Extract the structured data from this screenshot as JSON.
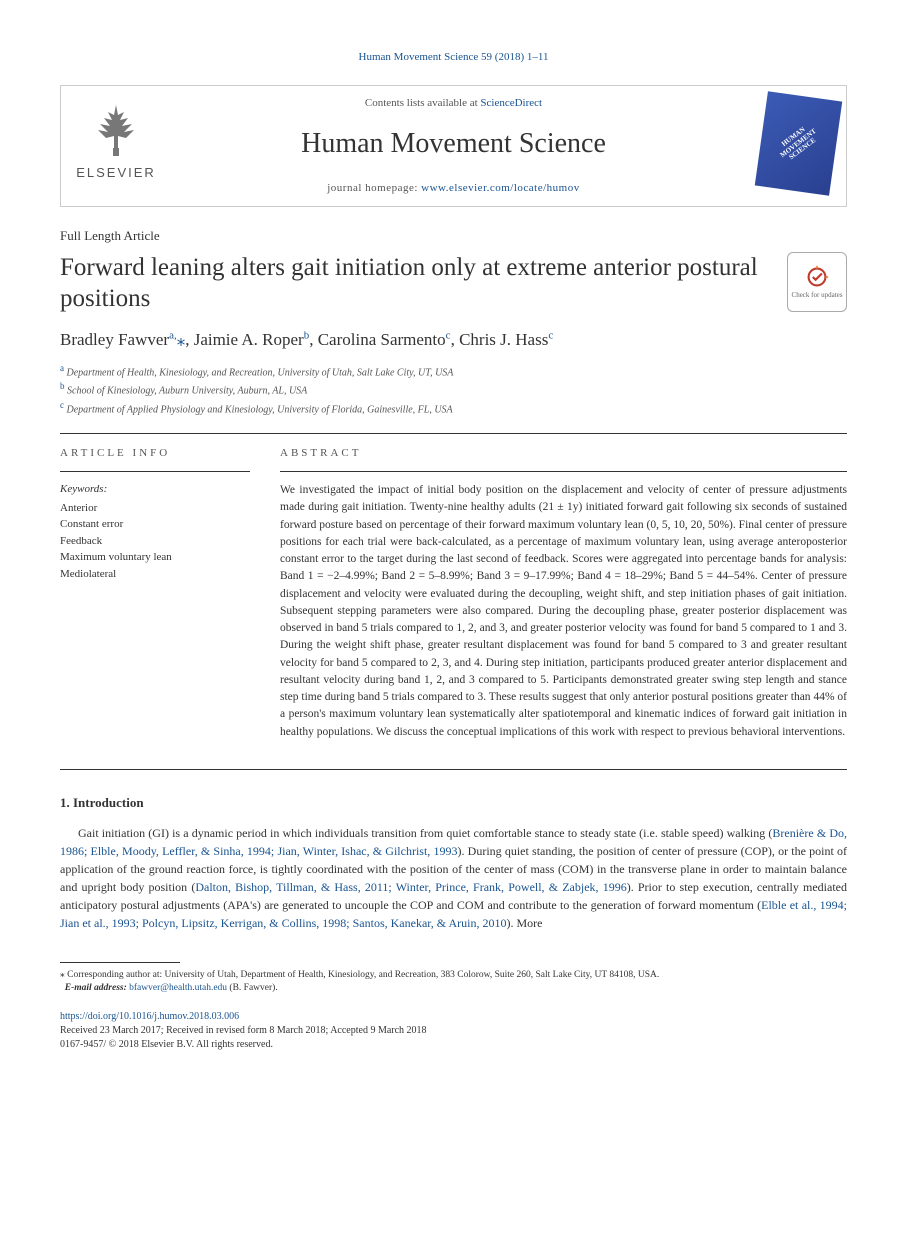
{
  "running_head": "Human Movement Science 59 (2018) 1–11",
  "header": {
    "contents_prefix": "Contents lists available at ",
    "contents_link": "ScienceDirect",
    "journal_title": "Human Movement Science",
    "homepage_prefix": "journal homepage: ",
    "homepage_url": "www.elsevier.com/locate/humov",
    "publisher": "ELSEVIER",
    "cover_text": "HUMAN MOVEMENT SCIENCE"
  },
  "article_type": "Full Length Article",
  "title": "Forward leaning alters gait initiation only at extreme anterior postural positions",
  "updates_badge": "Check for updates",
  "authors_html": "Bradley Fawver<sup>a,</sup><span class='corr'>⁎</span>, Jaimie A. Roper<sup>b</sup>, Carolina Sarmento<sup>c</sup>, Chris J. Hass<sup>c</sup>",
  "affiliations": [
    {
      "mark": "a",
      "text": "Department of Health, Kinesiology, and Recreation, University of Utah, Salt Lake City, UT, USA"
    },
    {
      "mark": "b",
      "text": "School of Kinesiology, Auburn University, Auburn, AL, USA"
    },
    {
      "mark": "c",
      "text": "Department of Applied Physiology and Kinesiology, University of Florida, Gainesville, FL, USA"
    }
  ],
  "info_label": "ARTICLE INFO",
  "abstract_label": "ABSTRACT",
  "keywords_label": "Keywords:",
  "keywords": [
    "Anterior",
    "Constant error",
    "Feedback",
    "Maximum voluntary lean",
    "Mediolateral"
  ],
  "abstract": "We investigated the impact of initial body position on the displacement and velocity of center of pressure adjustments made during gait initiation. Twenty-nine healthy adults (21 ± 1y) initiated forward gait following six seconds of sustained forward posture based on percentage of their forward maximum voluntary lean (0, 5, 10, 20, 50%). Final center of pressure positions for each trial were back-calculated, as a percentage of maximum voluntary lean, using average anteroposterior constant error to the target during the last second of feedback. Scores were aggregated into percentage bands for analysis: Band 1 = −2–4.99%; Band 2 = 5–8.99%; Band 3 = 9–17.99%; Band 4 = 18–29%; Band 5 = 44–54%. Center of pressure displacement and velocity were evaluated during the decoupling, weight shift, and step initiation phases of gait initiation. Subsequent stepping parameters were also compared. During the decoupling phase, greater posterior displacement was observed in band 5 trials compared to 1, 2, and 3, and greater posterior velocity was found for band 5 compared to 1 and 3. During the weight shift phase, greater resultant displacement was found for band 5 compared to 3 and greater resultant velocity for band 5 compared to 2, 3, and 4. During step initiation, participants produced greater anterior displacement and resultant velocity during band 1, 2, and 3 compared to 5. Participants demonstrated greater swing step length and stance step time during band 5 trials compared to 3. These results suggest that only anterior postural positions greater than 44% of a person's maximum voluntary lean systematically alter spatiotemporal and kinematic indices of forward gait initiation in healthy populations. We discuss the conceptual implications of this work with respect to previous behavioral interventions.",
  "intro_heading": "1. Introduction",
  "intro_para_html": "Gait initiation (GI) is a dynamic period in which individuals transition from quiet comfortable stance to steady state (i.e. stable speed) walking (<a href='#'>Brenière & Do, 1986; Elble, Moody, Leffler, & Sinha, 1994; Jian, Winter, Ishac, & Gilchrist, 1993</a>). During quiet standing, the position of center of pressure (COP), or the point of application of the ground reaction force, is tightly coordinated with the position of the center of mass (COM) in the transverse plane in order to maintain balance and upright body position (<a href='#'>Dalton, Bishop, Tillman, & Hass, 2011; Winter, Prince, Frank, Powell, & Zabjek, 1996</a>). Prior to step execution, centrally mediated anticipatory postural adjustments (APA's) are generated to uncouple the COP and COM and contribute to the generation of forward momentum (<a href='#'>Elble et al., 1994; Jian et al., 1993; Polcyn, Lipsitz, Kerrigan, & Collins, 1998; Santos, Kanekar, & Aruin, 2010</a>). More",
  "corresponding": {
    "mark": "⁎",
    "text": "Corresponding author at: University of Utah, Department of Health, Kinesiology, and Recreation, 383 Colorow, Suite 260, Salt Lake City, UT 84108, USA.",
    "email_label": "E-mail address:",
    "email": "bfawver@health.utah.edu",
    "email_attribution": "(B. Fawver)."
  },
  "doi": "https://doi.org/10.1016/j.humov.2018.03.006",
  "history": "Received 23 March 2017; Received in revised form 8 March 2018; Accepted 9 March 2018",
  "copyright": "0167-9457/ © 2018 Elsevier B.V. All rights reserved.",
  "colors": {
    "link": "#1a5490",
    "text": "#333333",
    "cover_bg": "#3b5bb5"
  }
}
